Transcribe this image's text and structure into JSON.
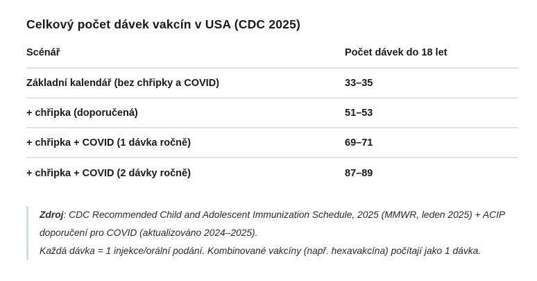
{
  "title": "Celkový počet dávek vakcín v USA (CDC 2025)",
  "table": {
    "col_scenario": "Scénář",
    "col_doses": "Počet dávek do 18 let",
    "rows": [
      {
        "scenario": "Základní kalendář (bez chřipky a COVID)",
        "doses": "33–35"
      },
      {
        "scenario": "+ chřipka (doporučená)",
        "doses": "51–53"
      },
      {
        "scenario": "+ chřipka + COVID (1 dávka ročně)",
        "doses": "69–71"
      },
      {
        "scenario": "+ chřipka + COVID (2 dávky ročně)",
        "doses": "87–89"
      }
    ]
  },
  "footer": {
    "source_label": "Zdroj",
    "source_rest": ": CDC Recommended Child and Adolescent Immunization Schedule, 2025 (MMWR, leden 2025) + ACIP doporučení pro COVID (aktualizováno 2024–2025).",
    "note": "Každá dávka = 1 injekce/orální podání. Kombinované vakcíny (např. hexavakcína) počítají jako 1 dávka."
  },
  "colors": {
    "text": "#17191c",
    "divider": "#dde2e5",
    "quote_bar": "#d6dadd",
    "background": "#ffffff"
  }
}
